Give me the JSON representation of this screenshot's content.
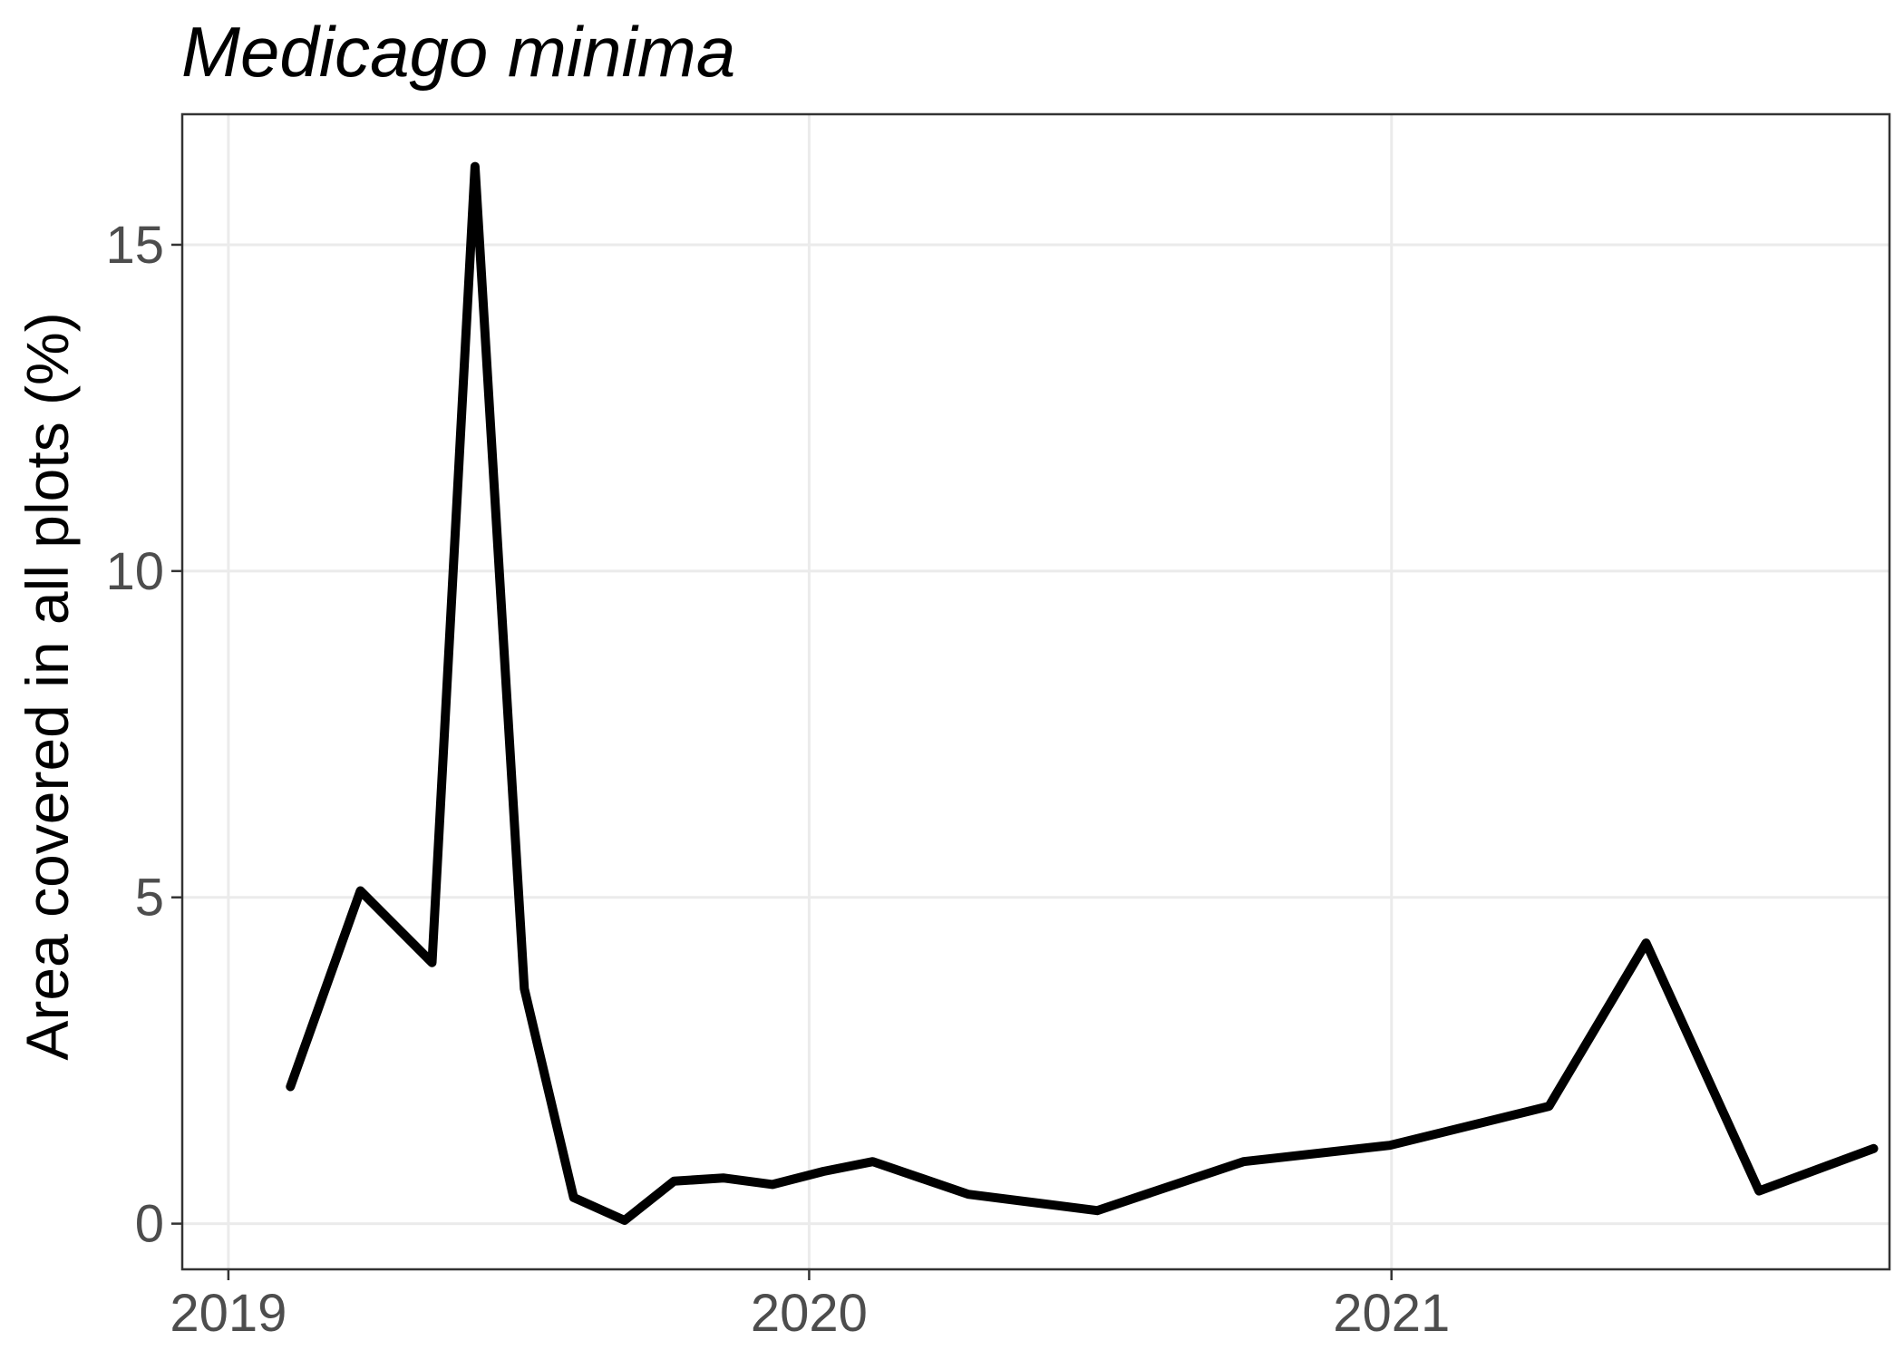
{
  "chart_data": {
    "type": "line",
    "title": "Medicago minima",
    "xlabel": "",
    "ylabel": "Area covered in all plots (%)",
    "x_ticks": [
      "2019",
      "2020",
      "2021"
    ],
    "y_ticks": [
      "0",
      "5",
      "10",
      "15"
    ],
    "xlim": [
      "2018-12-03",
      "2021-11-10"
    ],
    "ylim": [
      -0.7,
      17.0
    ],
    "grid": true,
    "legend": "none",
    "colors": {
      "line": "#000000",
      "grid": "#ebebeb",
      "ticks": "#4d4d4d"
    },
    "series": [
      {
        "x": [
          "2019-02-09",
          "2019-03-25",
          "2019-05-09",
          "2019-06-05",
          "2019-07-06",
          "2019-08-06",
          "2019-09-07",
          "2019-10-08",
          "2019-11-08",
          "2019-12-09",
          "2020-01-10",
          "2020-02-10",
          "2020-04-10",
          "2020-06-30",
          "2020-09-30",
          "2020-12-31",
          "2021-04-10",
          "2021-06-10",
          "2021-08-20",
          "2021-10-31"
        ],
        "y": [
          2.1,
          5.1,
          4.0,
          16.2,
          3.6,
          0.4,
          0.05,
          0.65,
          0.7,
          0.6,
          0.8,
          0.95,
          0.45,
          0.2,
          0.95,
          1.2,
          1.8,
          4.3,
          0.5,
          1.15
        ]
      }
    ]
  }
}
